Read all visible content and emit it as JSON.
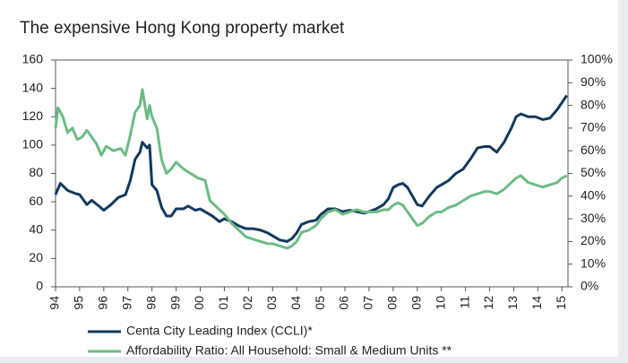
{
  "chart_data": {
    "type": "line",
    "title": "The expensive Hong Kong property market",
    "xlim": [
      1994,
      2015.25
    ],
    "xticks": [
      {
        "value": 1994,
        "label": "94"
      },
      {
        "value": 1995,
        "label": "95"
      },
      {
        "value": 1996,
        "label": "96"
      },
      {
        "value": 1997,
        "label": "97"
      },
      {
        "value": 1998,
        "label": "98"
      },
      {
        "value": 1999,
        "label": "99"
      },
      {
        "value": 2000,
        "label": "00"
      },
      {
        "value": 2001,
        "label": "01"
      },
      {
        "value": 2002,
        "label": "02"
      },
      {
        "value": 2003,
        "label": "03"
      },
      {
        "value": 2004,
        "label": "04"
      },
      {
        "value": 2005,
        "label": "05"
      },
      {
        "value": 2006,
        "label": "06"
      },
      {
        "value": 2007,
        "label": "07"
      },
      {
        "value": 2008,
        "label": "08"
      },
      {
        "value": 2009,
        "label": "09"
      },
      {
        "value": 2010,
        "label": "10"
      },
      {
        "value": 2011,
        "label": "11"
      },
      {
        "value": 2012,
        "label": "12"
      },
      {
        "value": 2013,
        "label": "13"
      },
      {
        "value": 2014,
        "label": "14"
      },
      {
        "value": 2015,
        "label": "15"
      }
    ],
    "ylim": [
      0,
      160
    ],
    "yticks": [
      0,
      20,
      40,
      60,
      80,
      100,
      120,
      140,
      160
    ],
    "y2lim": [
      0,
      100
    ],
    "y2ticks": [
      {
        "value": 0,
        "label": "0%"
      },
      {
        "value": 10,
        "label": "10%"
      },
      {
        "value": 20,
        "label": "20%"
      },
      {
        "value": 30,
        "label": "30%"
      },
      {
        "value": 40,
        "label": "40%"
      },
      {
        "value": 50,
        "label": "50%"
      },
      {
        "value": 60,
        "label": "60%"
      },
      {
        "value": 70,
        "label": "70%"
      },
      {
        "value": 80,
        "label": "80%"
      },
      {
        "value": 90,
        "label": "90%"
      },
      {
        "value": 100,
        "label": "100%"
      }
    ],
    "legend": "bottom",
    "series": [
      {
        "name": "Centa City Leading Index (CCLI)*",
        "color": "#12395e",
        "axis": "y",
        "x": [
          1994.0,
          1994.2,
          1994.5,
          1994.8,
          1995.0,
          1995.3,
          1995.5,
          1995.8,
          1996.0,
          1996.3,
          1996.6,
          1996.9,
          1997.1,
          1997.3,
          1997.5,
          1997.6,
          1997.8,
          1997.9,
          1998.0,
          1998.2,
          1998.4,
          1998.6,
          1998.8,
          1999.0,
          1999.3,
          1999.5,
          1999.8,
          2000.0,
          2000.3,
          2000.5,
          2000.8,
          2001.0,
          2001.3,
          2001.6,
          2001.9,
          2002.2,
          2002.5,
          2002.8,
          2003.0,
          2003.3,
          2003.6,
          2003.8,
          2004.0,
          2004.2,
          2004.5,
          2004.8,
          2005.0,
          2005.3,
          2005.6,
          2005.9,
          2006.2,
          2006.5,
          2006.8,
          2007.0,
          2007.3,
          2007.6,
          2007.8,
          2008.0,
          2008.2,
          2008.4,
          2008.6,
          2008.8,
          2009.0,
          2009.2,
          2009.5,
          2009.8,
          2010.0,
          2010.3,
          2010.6,
          2010.9,
          2011.2,
          2011.5,
          2011.8,
          2012.0,
          2012.3,
          2012.6,
          2012.9,
          2013.1,
          2013.3,
          2013.6,
          2013.9,
          2014.2,
          2014.5,
          2014.8,
          2015.0,
          2015.2
        ],
        "values": [
          65,
          73,
          68,
          66,
          65,
          58,
          61,
          57,
          54,
          58,
          63,
          65,
          75,
          90,
          95,
          102,
          98,
          100,
          72,
          68,
          56,
          50,
          50,
          55,
          55,
          57,
          54,
          55,
          52,
          50,
          46,
          48,
          46,
          43,
          41,
          41,
          40,
          38,
          36,
          33,
          32,
          34,
          38,
          44,
          46,
          47,
          51,
          55,
          55,
          53,
          54,
          53,
          52,
          53,
          55,
          58,
          62,
          70,
          72,
          73,
          70,
          64,
          58,
          57,
          64,
          70,
          72,
          75,
          80,
          83,
          90,
          98,
          99,
          99,
          95,
          102,
          112,
          120,
          122,
          120,
          120,
          118,
          119,
          125,
          130,
          135
        ]
      },
      {
        "name": "Affordability Ratio: All Household: Small & Medium Units **",
        "color": "#6dbb84",
        "axis": "y2",
        "x": [
          1994.0,
          1994.1,
          1994.3,
          1994.5,
          1994.7,
          1994.9,
          1995.1,
          1995.3,
          1995.5,
          1995.7,
          1995.9,
          1996.1,
          1996.4,
          1996.7,
          1996.9,
          1997.1,
          1997.3,
          1997.5,
          1997.6,
          1997.8,
          1997.9,
          1998.0,
          1998.2,
          1998.4,
          1998.6,
          1998.8,
          1999.0,
          1999.3,
          1999.6,
          1999.9,
          2000.2,
          2000.4,
          2000.7,
          2001.0,
          2001.3,
          2001.6,
          2001.9,
          2002.2,
          2002.5,
          2002.8,
          2003.0,
          2003.3,
          2003.6,
          2003.8,
          2004.0,
          2004.2,
          2004.5,
          2004.8,
          2005.0,
          2005.3,
          2005.6,
          2005.9,
          2006.2,
          2006.5,
          2006.8,
          2007.0,
          2007.3,
          2007.6,
          2007.8,
          2008.0,
          2008.2,
          2008.4,
          2008.6,
          2008.8,
          2009.0,
          2009.2,
          2009.5,
          2009.8,
          2010.0,
          2010.3,
          2010.6,
          2010.9,
          2011.2,
          2011.5,
          2011.8,
          2012.0,
          2012.3,
          2012.6,
          2012.9,
          2013.1,
          2013.3,
          2013.6,
          2013.9,
          2014.2,
          2014.5,
          2014.8,
          2015.0,
          2015.2
        ],
        "values": [
          70,
          79,
          75,
          68,
          70,
          65,
          66,
          69,
          66,
          63,
          58,
          62,
          60,
          61,
          58,
          67,
          77,
          80,
          87,
          74,
          80,
          75,
          70,
          56,
          50,
          52,
          55,
          52,
          50,
          48,
          47,
          38,
          35,
          32,
          28,
          25,
          22,
          21,
          20,
          19,
          19,
          18,
          17,
          18,
          20,
          24,
          25,
          27,
          30,
          33,
          34,
          32,
          33,
          34,
          33,
          33,
          33,
          34,
          34,
          36,
          37,
          36,
          33,
          30,
          27,
          28,
          31,
          33,
          33,
          35,
          36,
          38,
          40,
          41,
          42,
          42,
          41,
          43,
          46,
          48,
          49,
          46,
          45,
          44,
          45,
          46,
          48,
          49
        ]
      }
    ]
  }
}
